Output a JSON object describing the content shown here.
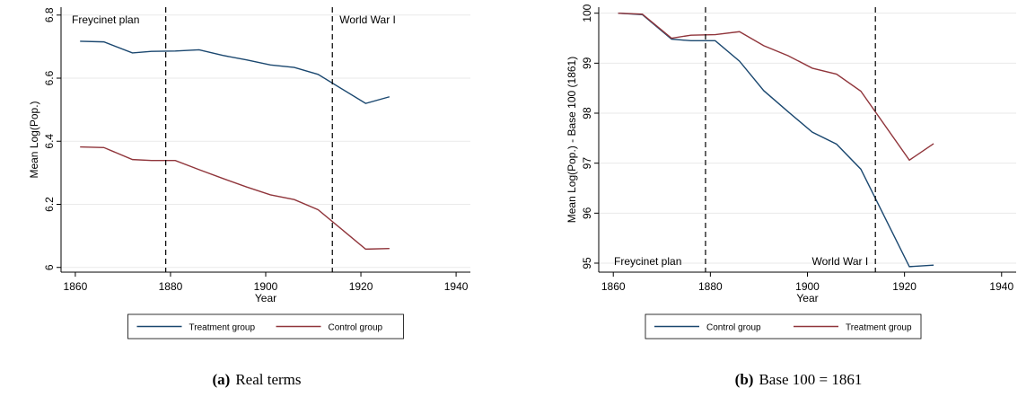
{
  "chart_data": [
    {
      "type": "line",
      "caption_label": "(a)",
      "caption": "Real terms",
      "x_label": "Year",
      "y_label": "Mean Log(Pop.)",
      "x": [
        1861,
        1866,
        1872,
        1876,
        1881,
        1886,
        1891,
        1896,
        1901,
        1906,
        1911,
        1921,
        1926
      ],
      "series": [
        {
          "name": "Treatment group",
          "color": "#1a476f",
          "values": [
            6.717,
            6.715,
            6.68,
            6.685,
            6.686,
            6.69,
            6.672,
            6.658,
            6.642,
            6.634,
            6.612,
            6.52,
            6.541
          ]
        },
        {
          "name": "Control group",
          "color": "#90353b",
          "values": [
            6.382,
            6.38,
            6.342,
            6.339,
            6.339,
            6.31,
            6.282,
            6.255,
            6.23,
            6.215,
            6.183,
            6.058,
            6.06
          ]
        }
      ],
      "annotations": [
        {
          "text": "Freycinet plan",
          "x": 1879
        },
        {
          "text": "World War I",
          "x": 1914
        }
      ],
      "xlim": [
        1857,
        1943
      ],
      "xticks": [
        1860,
        1880,
        1900,
        1920,
        1940
      ],
      "ylim": [
        5.985,
        6.825
      ],
      "yticks": [
        6,
        6.2,
        6.4,
        6.6,
        6.8
      ],
      "grid": true,
      "legend": "bottom"
    },
    {
      "type": "line",
      "caption_label": "(b)",
      "caption": "Base 100 = 1861",
      "x_label": "Year",
      "y_label": "Mean Log(Pop.) - Base 100 (1861)",
      "x": [
        1861,
        1866,
        1872,
        1876,
        1881,
        1886,
        1891,
        1896,
        1901,
        1906,
        1911,
        1921,
        1926
      ],
      "series": [
        {
          "name": "Control group",
          "color": "#1a476f",
          "values": [
            100,
            99.97,
            99.48,
            99.45,
            99.45,
            99.04,
            98.45,
            98.03,
            97.62,
            97.38,
            96.88,
            94.93,
            94.96
          ]
        },
        {
          "name": "Treatment group",
          "color": "#90353b",
          "values": [
            100,
            99.98,
            99.5,
            99.56,
            99.57,
            99.63,
            99.35,
            99.15,
            98.9,
            98.78,
            98.44,
            97.06,
            97.39
          ]
        }
      ],
      "annotations": [
        {
          "text": "Freycinet plan",
          "x": 1879
        },
        {
          "text": "World War I",
          "x": 1914
        }
      ],
      "xlim": [
        1857,
        1943
      ],
      "xticks": [
        1860,
        1880,
        1900,
        1920,
        1940
      ],
      "ylim": [
        94.82,
        100.12
      ],
      "yticks": [
        95,
        96,
        97,
        98,
        99,
        100
      ],
      "grid": true,
      "legend": "bottom"
    }
  ]
}
